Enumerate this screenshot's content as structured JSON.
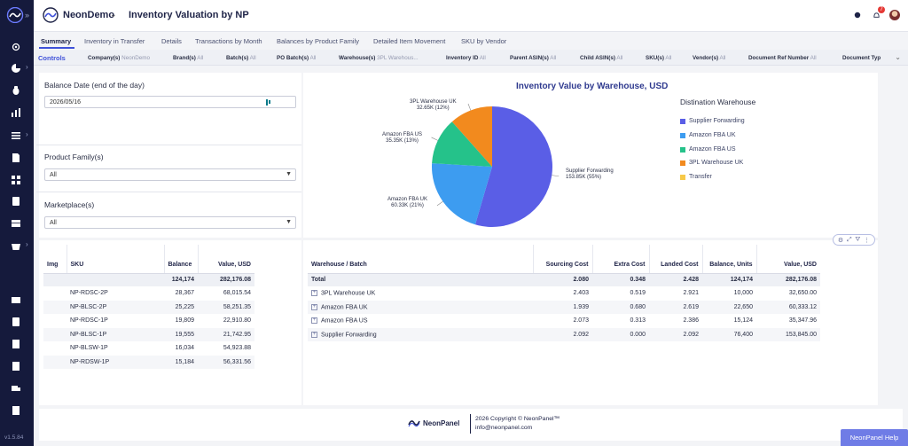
{
  "app": {
    "company": "NeonDemo",
    "page_title": "Inventory Valuation by NP",
    "version": "v1.5.84",
    "notifications": "7"
  },
  "sidebar": {
    "icons": [
      "logo-icon",
      "settings-icon",
      "pie-chart-icon",
      "bug-icon",
      "bar-chart-icon",
      "list-icon",
      "document-icon",
      "grid-icon",
      "book-icon",
      "table-icon",
      "basket-icon",
      "inbox-icon",
      "database-icon",
      "cart-icon",
      "file-icon",
      "truck-icon",
      "export-icon"
    ]
  },
  "tabs": [
    "Summary",
    "Inventory in Transfer",
    "Details",
    "Transactions by Month",
    "Balances by Product Family",
    "Detailed Item Movement",
    "SKU by Vendor"
  ],
  "controls": {
    "label": "Controls",
    "filters": [
      {
        "name": "Company(s)",
        "value": "NeonDemo"
      },
      {
        "name": "Brand(s)",
        "value": "All"
      },
      {
        "name": "Batch(s)",
        "value": "All"
      },
      {
        "name": "PO Batch(s)",
        "value": "All"
      },
      {
        "name": "Warehouse(s)",
        "value": "3PL Warehous..."
      },
      {
        "name": "Inventory ID",
        "value": "All"
      },
      {
        "name": "Parent ASIN(s)",
        "value": "All"
      },
      {
        "name": "Child ASIN(s)",
        "value": "All"
      },
      {
        "name": "SKU(s)",
        "value": "All"
      },
      {
        "name": "Vendor(s)",
        "value": "All"
      },
      {
        "name": "Document Ref Number",
        "value": "All"
      },
      {
        "name": "Document Typ",
        "value": ""
      }
    ]
  },
  "filters": {
    "balance_date_label": "Balance Date (end of the day)",
    "balance_date_value": "2026/05/16",
    "product_family_label": "Product Family(s)",
    "product_family_value": "All",
    "marketplace_label": "Marketplace(s)",
    "marketplace_value": "All"
  },
  "chart_data": {
    "type": "pie",
    "title": "Inventory Value by Warehouse, USD",
    "legend_title": "Distination Warehouse",
    "legend": [
      "Supplier Forwarding",
      "Amazon FBA UK",
      "Amazon FBA US",
      "3PL Warehouse UK",
      "Transfer"
    ],
    "colors": [
      "#5a5ee6",
      "#3d9cf0",
      "#25c28a",
      "#f28a1e",
      "#f7c948"
    ],
    "slices": [
      {
        "name": "Supplier Forwarding",
        "value": 153.85,
        "label": "153.85K (55%)",
        "percent": 55
      },
      {
        "name": "Amazon FBA UK",
        "value": 60.33,
        "label": "60.33K (21%)",
        "percent": 21
      },
      {
        "name": "Amazon FBA US",
        "value": 35.35,
        "label": "35.35K (13%)",
        "percent": 13
      },
      {
        "name": "3PL Warehouse UK",
        "value": 32.65,
        "label": "32.65K (12%)",
        "percent": 12
      }
    ],
    "unit": "K"
  },
  "sku_table": {
    "headers": [
      "Img",
      "SKU",
      "Balance",
      "Value, USD"
    ],
    "total": {
      "balance": "124,174",
      "value": "282,176.08"
    },
    "rows": [
      {
        "sku": "NP-RDSC-2P",
        "balance": "28,367",
        "value": "68,015.54"
      },
      {
        "sku": "NP-BLSC-2P",
        "balance": "25,225",
        "value": "58,251.35"
      },
      {
        "sku": "NP-RDSC-1P",
        "balance": "19,809",
        "value": "22,910.80"
      },
      {
        "sku": "NP-BLSC-1P",
        "balance": "19,555",
        "value": "21,742.95"
      },
      {
        "sku": "NP-BLSW-1P",
        "balance": "16,034",
        "value": "54,923.88"
      },
      {
        "sku": "NP-RDSW-1P",
        "balance": "15,184",
        "value": "56,331.56"
      }
    ]
  },
  "wh_table": {
    "headers": [
      "Warehouse / Batch",
      "Sourcing Cost",
      "Extra Cost",
      "Landed Cost",
      "Balance, Units",
      "Value, USD"
    ],
    "total": {
      "name": "Total",
      "sourcing": "2.080",
      "extra": "0.348",
      "landed": "2.428",
      "units": "124,174",
      "value": "282,176.08"
    },
    "rows": [
      {
        "name": "3PL Warehouse UK",
        "sourcing": "2.403",
        "extra": "0.519",
        "landed": "2.921",
        "units": "10,000",
        "value": "32,650.00"
      },
      {
        "name": "Amazon FBA UK",
        "sourcing": "1.939",
        "extra": "0.680",
        "landed": "2.619",
        "units": "22,650",
        "value": "60,333.12"
      },
      {
        "name": "Amazon FBA US",
        "sourcing": "2.073",
        "extra": "0.313",
        "landed": "2.386",
        "units": "15,124",
        "value": "35,347.96"
      },
      {
        "name": "Supplier Forwarding",
        "sourcing": "2.092",
        "extra": "0.000",
        "landed": "2.092",
        "units": "76,400",
        "value": "153,845.00"
      }
    ]
  },
  "footer": {
    "brand": "NeonPanel",
    "copyright": "2026 Copyright © NeonPanel™",
    "email": "info@neonpanel.com",
    "help": "NeonPanel Help"
  }
}
